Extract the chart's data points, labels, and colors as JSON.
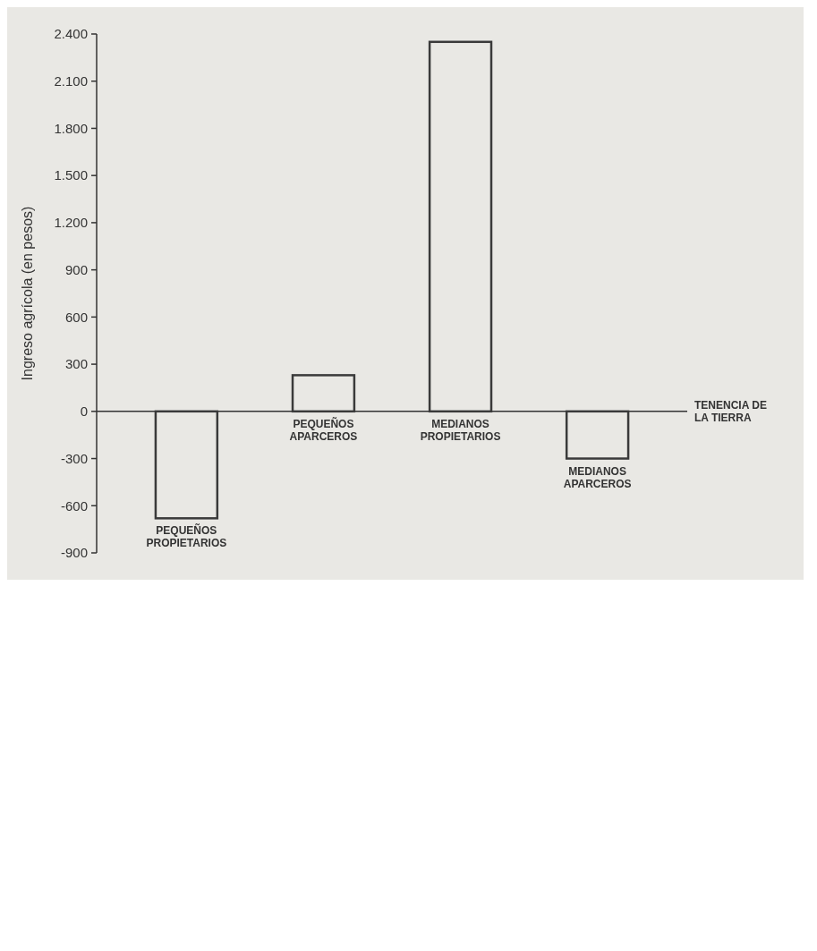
{
  "chart_data": {
    "type": "bar",
    "categories": [
      "PEQUEÑOS PROPIETARIOS",
      "PEQUEÑOS APARCEROS",
      "MEDIANOS PROPIETARIOS",
      "MEDIANOS APARCEROS"
    ],
    "values": [
      -680,
      230,
      2350,
      -300
    ],
    "color": "#3a3a3a",
    "xlabel": "TENENCIA DE LA TIERRA",
    "ylabel": "Ingreso agrícola (en pesos)",
    "ylim": [
      -900,
      2400
    ],
    "yticks": [
      {
        "value": -900,
        "label": "-900"
      },
      {
        "value": -600,
        "label": "-600"
      },
      {
        "value": -300,
        "label": "-300"
      },
      0,
      300,
      600,
      900,
      {
        "value": 1200,
        "label": "1.200"
      },
      {
        "value": 1500,
        "label": "1.500"
      },
      {
        "value": 1800,
        "label": "1.800"
      },
      {
        "value": 2100,
        "label": "2.100"
      },
      {
        "value": 2400,
        "label": "2.400"
      }
    ],
    "grid": false
  }
}
